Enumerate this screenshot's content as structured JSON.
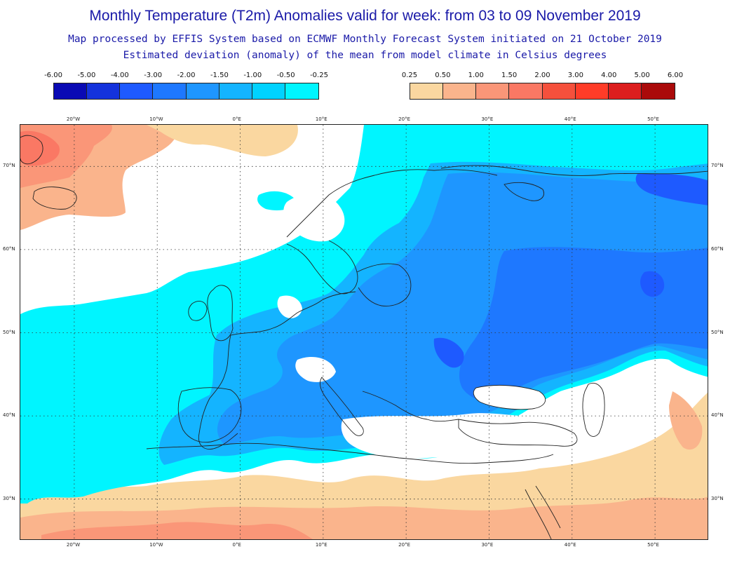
{
  "header": {
    "title": "Monthly Temperature (T2m) Anomalies valid for week: from 03 to 09 November 2019",
    "subtitle1": "Map processed by EFFIS System based on ECMWF Monthly Forecast System initiated on 21 October 2019",
    "subtitle2": "Estimated deviation (anomaly) of the mean from model climate in Celsius degrees"
  },
  "legend": {
    "negative": {
      "labels": [
        "-6.00",
        "-5.00",
        "-4.00",
        "-3.00",
        "-2.00",
        "-1.50",
        "-1.00",
        "-0.50",
        "-0.25"
      ],
      "colors": [
        "#0a0ab4",
        "#1432dc",
        "#1e5aff",
        "#1e78ff",
        "#1e96ff",
        "#14b4ff",
        "#00d2ff",
        "#00f5ff"
      ]
    },
    "positive": {
      "labels": [
        "0.25",
        "0.50",
        "1.00",
        "1.50",
        "2.00",
        "3.00",
        "4.00",
        "5.00",
        "6.00"
      ],
      "colors": [
        "#fad7a0",
        "#fab48c",
        "#fa9678",
        "#fa7864",
        "#f5503c",
        "#ff3c28",
        "#dc1e1e",
        "#aa0a0a"
      ]
    }
  },
  "map": {
    "lon_labels": [
      "20°W",
      "10°W",
      "0°E",
      "10°E",
      "20°E",
      "30°E",
      "40°E",
      "50°E"
    ],
    "lat_labels": [
      "70°N",
      "60°N",
      "50°N",
      "40°N",
      "30°N"
    ],
    "lon_values": [
      -20,
      -10,
      0,
      10,
      20,
      30,
      40,
      50
    ],
    "lat_values": [
      70,
      60,
      50,
      40,
      30
    ],
    "extent": {
      "lon_min": -26.5,
      "lon_max": 56.5,
      "lat_min": 25,
      "lat_max": 75
    },
    "colors": {
      "cyan": "#00f5ff",
      "light_blue": "#14b4ff",
      "mid_blue": "#1e96ff",
      "blue": "#1e78ff",
      "deep_blue": "#1e5aff",
      "pale_orange": "#fad7a0",
      "light_orange": "#fab48c",
      "salmon": "#fa9678",
      "coral": "#fa7864",
      "coastline": "#222222",
      "grid": "#333333"
    }
  }
}
